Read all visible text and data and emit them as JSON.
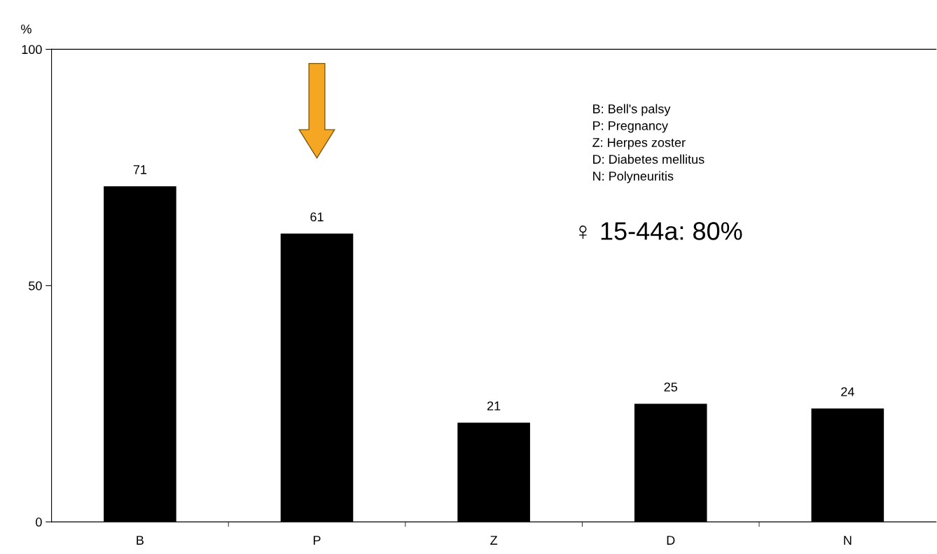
{
  "chart_data": {
    "type": "bar",
    "ylabel": "%",
    "categories": [
      "B",
      "P",
      "Z",
      "D",
      "N"
    ],
    "values": [
      71,
      61,
      21,
      25,
      24
    ],
    "color": "#000000",
    "ylim": [
      0,
      100
    ],
    "yticks": [
      0,
      50,
      100
    ],
    "data_labels": true,
    "grid": false,
    "annotations": [
      "B: Bell's palsy",
      "P: Pregnancy",
      "Z: Herpes zoster",
      "D: Diabetes mellitus",
      "N: Polyneuritis",
      "♀ 15-44a: 80%"
    ]
  }
}
